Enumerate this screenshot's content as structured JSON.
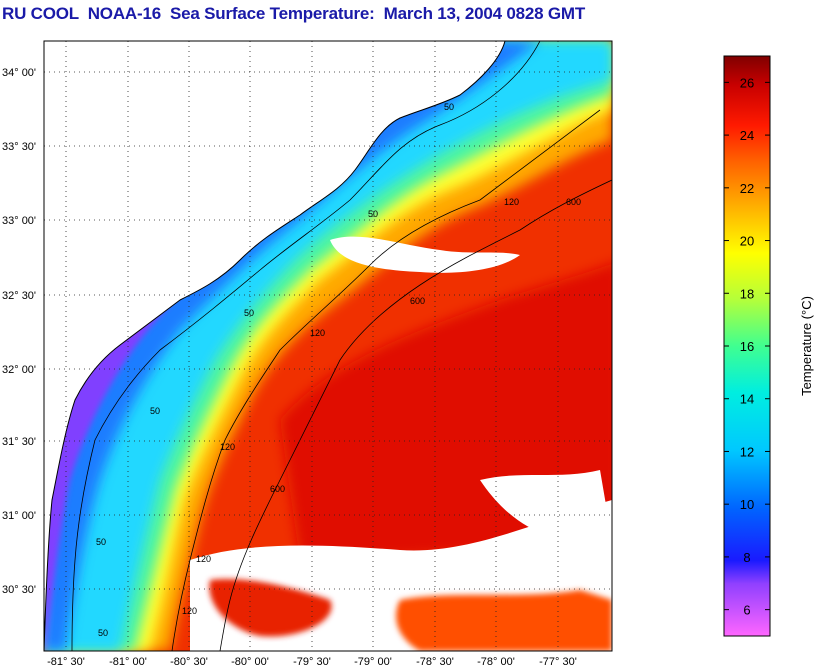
{
  "header": {
    "title": "RU COOL  NOAA-16  Sea Surface Temperature:  March 13, 2004 0828 GMT"
  },
  "map": {
    "lat_ticks": [
      "34° 00'",
      "33° 30'",
      "33° 00'",
      "32° 30'",
      "32° 00'",
      "31° 30'",
      "31° 00'",
      "30° 30'"
    ],
    "lon_ticks": [
      "-81° 30'",
      "-81° 00'",
      "-80° 30'",
      "-80° 00'",
      "-79° 30'",
      "-79° 00'",
      "-78° 30'",
      "-78° 00'",
      "-77° 30'"
    ],
    "contour_labels": [
      "50",
      "50",
      "50",
      "50",
      "50",
      "50",
      "120",
      "120",
      "120",
      "120",
      "120",
      "600",
      "600",
      "600"
    ]
  },
  "colorbar": {
    "label": "Temperature (°C)",
    "ticks": [
      "26",
      "24",
      "22",
      "20",
      "18",
      "16",
      "14",
      "12",
      "10",
      "8",
      "6"
    ],
    "range": [
      5,
      27
    ]
  },
  "colors": {
    "title": "#1a1aa8",
    "land": "#ffffff",
    "cloud": "#ffffff"
  }
}
